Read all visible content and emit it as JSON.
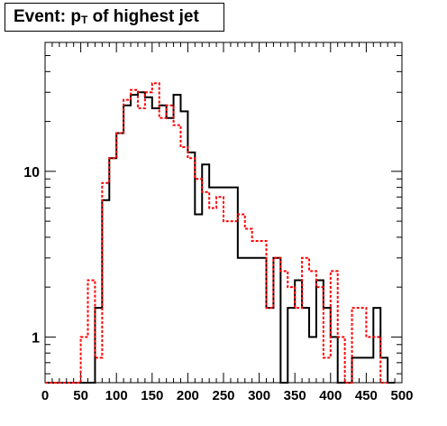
{
  "chart_data": {
    "type": "step-histogram",
    "title": {
      "prefix": "Event: p",
      "sub": "T",
      "suffix": " of highest jet"
    },
    "xlabel": "",
    "ylabel": "",
    "xlim": [
      0,
      500
    ],
    "ylim": [
      0.53,
      60
    ],
    "y_scale": "log",
    "grid": false,
    "legend": "none",
    "bin_width": 10,
    "xticks": [
      "0",
      "50",
      "100",
      "150",
      "200",
      "250",
      "300",
      "350",
      "400",
      "450",
      "500"
    ],
    "yticks": [
      {
        "value": 1,
        "label": "1"
      },
      {
        "value": 10,
        "label": "10"
      }
    ],
    "series": [
      {
        "color": "#000000",
        "style": "solid",
        "values": [
          0,
          0,
          0,
          0,
          0,
          0,
          0,
          1.5,
          6.7,
          12,
          17,
          25,
          29,
          30,
          28,
          24,
          25,
          21,
          29,
          23,
          13,
          5.5,
          11,
          8,
          8,
          8,
          8,
          3,
          3,
          3,
          3,
          1.5,
          3,
          0,
          1.5,
          2.2,
          1.5,
          1,
          2.2,
          1.5,
          1,
          0,
          0,
          0.75,
          0.75,
          0.75,
          1.5,
          0.75,
          0
        ]
      },
      {
        "color": "#ff0000",
        "style": "dashed",
        "values": [
          0,
          0,
          0,
          0,
          0,
          1,
          2.2,
          0.75,
          8.5,
          12,
          17,
          27,
          31,
          24,
          30,
          34,
          21,
          25,
          19,
          14,
          12,
          9,
          7.5,
          6,
          7,
          5,
          5,
          5.5,
          4.5,
          3.8,
          3.8,
          1.5,
          3,
          2.5,
          2,
          1.5,
          3,
          2.5,
          2,
          0.75,
          2.5,
          1,
          0.5,
          1.5,
          1.5,
          1,
          1,
          0.5
        ]
      }
    ]
  }
}
